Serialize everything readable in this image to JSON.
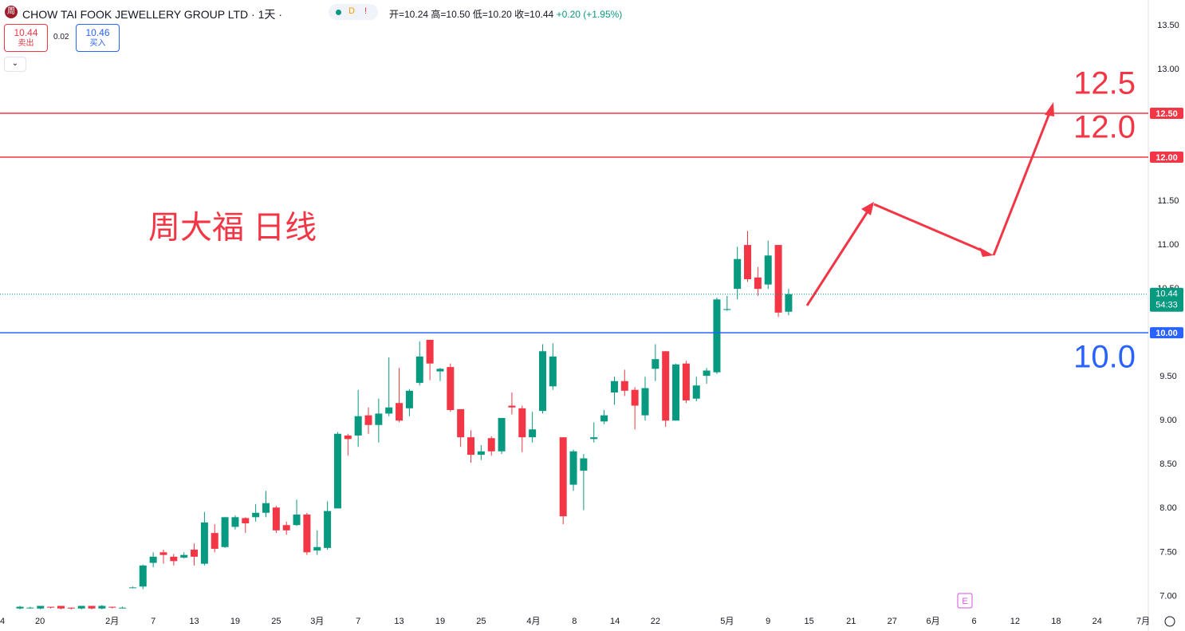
{
  "header": {
    "logo": "周",
    "symbol": "CHOW TAI FOOK JEWELLERY GROUP LTD · 1天 ·",
    "status": [
      "D",
      "!"
    ],
    "ohlc": [
      "开=10.24",
      "高=10.50",
      "低=10.20",
      "收=10.44",
      "+0.20 (+1.95%)"
    ]
  },
  "trade": {
    "sell_price": "10.44",
    "sell_label": "卖出",
    "spread": "0.02",
    "buy_price": "10.46",
    "buy_label": "买入"
  },
  "event_marker": "E",
  "chart_data": {
    "type": "candlestick",
    "annotation": "周大福 日线",
    "up_color": "#089981",
    "down_color": "#f23645",
    "open": [
      6.86,
      6.87,
      6.86,
      6.88,
      6.89,
      6.87,
      6.86,
      6.89,
      6.86,
      6.88,
      6.87,
      7.1,
      7.11,
      7.38,
      7.5,
      7.45,
      7.44,
      7.53,
      7.37,
      7.72,
      7.56,
      7.79,
      7.89,
      7.9,
      7.95,
      8.01,
      7.81,
      7.81,
      7.93,
      7.52,
      7.55,
      8.0,
      8.83,
      8.83,
      9.06,
      8.95,
      9.08,
      9.2,
      9.14,
      9.43,
      9.92,
      9.56,
      9.61,
      9.13,
      8.81,
      8.61,
      8.8,
      8.65,
      9.17,
      9.14,
      8.81,
      9.11,
      9.39,
      8.81,
      8.27,
      8.43,
      8.79,
      8.99,
      9.32,
      9.45,
      9.35,
      9.06,
      9.59,
      9.79,
      9.0,
      9.65,
      9.25,
      9.51,
      9.55,
      10.26,
      10.5,
      11.0,
      10.63,
      10.55,
      11.0,
      10.24
    ],
    "high": [
      6.89,
      6.88,
      6.89,
      6.88,
      6.89,
      6.87,
      6.89,
      6.89,
      6.9,
      6.88,
      6.88,
      7.11,
      7.36,
      7.5,
      7.53,
      7.48,
      7.5,
      7.6,
      7.96,
      7.82,
      7.9,
      7.92,
      7.9,
      8.05,
      8.2,
      8.03,
      7.85,
      8.1,
      7.95,
      7.75,
      8.08,
      8.87,
      8.85,
      9.35,
      9.15,
      9.25,
      9.72,
      9.6,
      9.36,
      9.9,
      9.92,
      9.6,
      9.65,
      9.13,
      8.89,
      8.72,
      8.82,
      9.03,
      9.32,
      9.17,
      9.1,
      9.87,
      9.88,
      8.81,
      8.67,
      8.62,
      8.98,
      9.12,
      9.5,
      9.58,
      9.38,
      9.5,
      9.87,
      9.79,
      9.65,
      9.68,
      9.5,
      9.6,
      10.4,
      10.42,
      10.98,
      11.16,
      10.75,
      11.05,
      11.0,
      10.5
    ],
    "low": [
      6.85,
      6.86,
      6.85,
      6.86,
      6.85,
      6.85,
      6.85,
      6.85,
      6.85,
      6.86,
      6.86,
      7.09,
      7.08,
      7.33,
      7.37,
      7.35,
      7.43,
      7.35,
      7.35,
      7.5,
      7.55,
      7.76,
      7.72,
      7.85,
      7.9,
      7.72,
      7.7,
      7.8,
      7.47,
      7.47,
      7.53,
      8.0,
      8.6,
      8.7,
      8.85,
      8.75,
      9.05,
      8.98,
      9.05,
      9.4,
      9.46,
      9.45,
      9.1,
      8.7,
      8.52,
      8.55,
      8.6,
      8.62,
      9.07,
      8.64,
      8.75,
      9.08,
      9.35,
      7.82,
      8.2,
      7.98,
      8.75,
      8.96,
      9.18,
      9.28,
      8.9,
      9.0,
      9.45,
      8.93,
      9.0,
      9.2,
      9.22,
      9.42,
      9.53,
      10.25,
      10.38,
      10.58,
      10.42,
      10.5,
      10.18,
      10.2
    ],
    "close": [
      6.88,
      6.87,
      6.89,
      6.87,
      6.86,
      6.86,
      6.89,
      6.86,
      6.89,
      6.87,
      6.87,
      7.1,
      7.35,
      7.45,
      7.47,
      7.4,
      7.47,
      7.45,
      7.84,
      7.54,
      7.9,
      7.9,
      7.83,
      7.95,
      8.06,
      7.75,
      7.75,
      7.93,
      7.5,
      7.56,
      7.97,
      8.85,
      8.79,
      9.05,
      8.95,
      9.08,
      9.15,
      9.0,
      9.34,
      9.73,
      9.65,
      9.59,
      9.12,
      8.81,
      8.61,
      8.65,
      8.65,
      9.03,
      9.15,
      8.81,
      8.9,
      9.79,
      9.73,
      7.91,
      8.65,
      8.57,
      8.81,
      9.06,
      9.45,
      9.34,
      9.17,
      9.37,
      9.7,
      9.0,
      9.64,
      9.23,
      9.4,
      9.57,
      10.38,
      10.27,
      10.84,
      10.61,
      10.5,
      10.88,
      10.23,
      10.44
    ],
    "xlim": [
      -1.95,
      110.1
    ],
    "xticks": [
      {
        "value": -1.71,
        "label": "4"
      },
      {
        "value": 1.95,
        "label": "20"
      },
      {
        "value": 9,
        "label": "2月"
      },
      {
        "value": 13,
        "label": "7"
      },
      {
        "value": 17,
        "label": "13"
      },
      {
        "value": 21,
        "label": "19"
      },
      {
        "value": 25,
        "label": "25"
      },
      {
        "value": 29,
        "label": "3月"
      },
      {
        "value": 33,
        "label": "7"
      },
      {
        "value": 37,
        "label": "13"
      },
      {
        "value": 41,
        "label": "19"
      },
      {
        "value": 45,
        "label": "25"
      },
      {
        "value": 50.1,
        "label": "4月"
      },
      {
        "value": 54.1,
        "label": "8"
      },
      {
        "value": 58.05,
        "label": "14"
      },
      {
        "value": 62,
        "label": "22"
      },
      {
        "value": 69,
        "label": "5月"
      },
      {
        "value": 73,
        "label": "9"
      },
      {
        "value": 77,
        "label": "15"
      },
      {
        "value": 81.1,
        "label": "21"
      },
      {
        "value": 85.1,
        "label": "27"
      },
      {
        "value": 89.1,
        "label": "6月"
      },
      {
        "value": 93.1,
        "label": "6"
      },
      {
        "value": 97.1,
        "label": "12"
      },
      {
        "value": 101.1,
        "label": "18"
      },
      {
        "value": 105.1,
        "label": "24"
      },
      {
        "value": 109.6,
        "label": "7月"
      }
    ],
    "ylim": [
      6.84,
      13.79
    ],
    "yticks": [
      {
        "value": 7,
        "label": "7.00"
      },
      {
        "value": 7.5,
        "label": "7.50"
      },
      {
        "value": 8,
        "label": "8.00"
      },
      {
        "value": 8.5,
        "label": "8.50"
      },
      {
        "value": 9,
        "label": "9.00"
      },
      {
        "value": 9.5,
        "label": "9.50"
      },
      {
        "value": 10,
        "label": "10.00"
      },
      {
        "value": 10.5,
        "label": "10.50"
      },
      {
        "value": 11,
        "label": "11.00"
      },
      {
        "value": 11.5,
        "label": "11.50"
      },
      {
        "value": 12,
        "label": "12.00"
      },
      {
        "value": 12.5,
        "label": "12.50"
      },
      {
        "value": 13,
        "label": "13.00"
      },
      {
        "value": 13.5,
        "label": "13.50"
      }
    ],
    "grid": false,
    "hlines": [
      {
        "value": 12.5,
        "label": "12.50",
        "note": "12.5",
        "color": "#f23645"
      },
      {
        "value": 12,
        "label": "12.00",
        "note": "12.0",
        "color": "#f23645"
      },
      {
        "value": 10,
        "label": "10.00",
        "note": "10.0",
        "color": "#2962ff"
      }
    ],
    "last_price": {
      "value": 10.44,
      "countdown": "54:33",
      "color": "#089981"
    }
  }
}
